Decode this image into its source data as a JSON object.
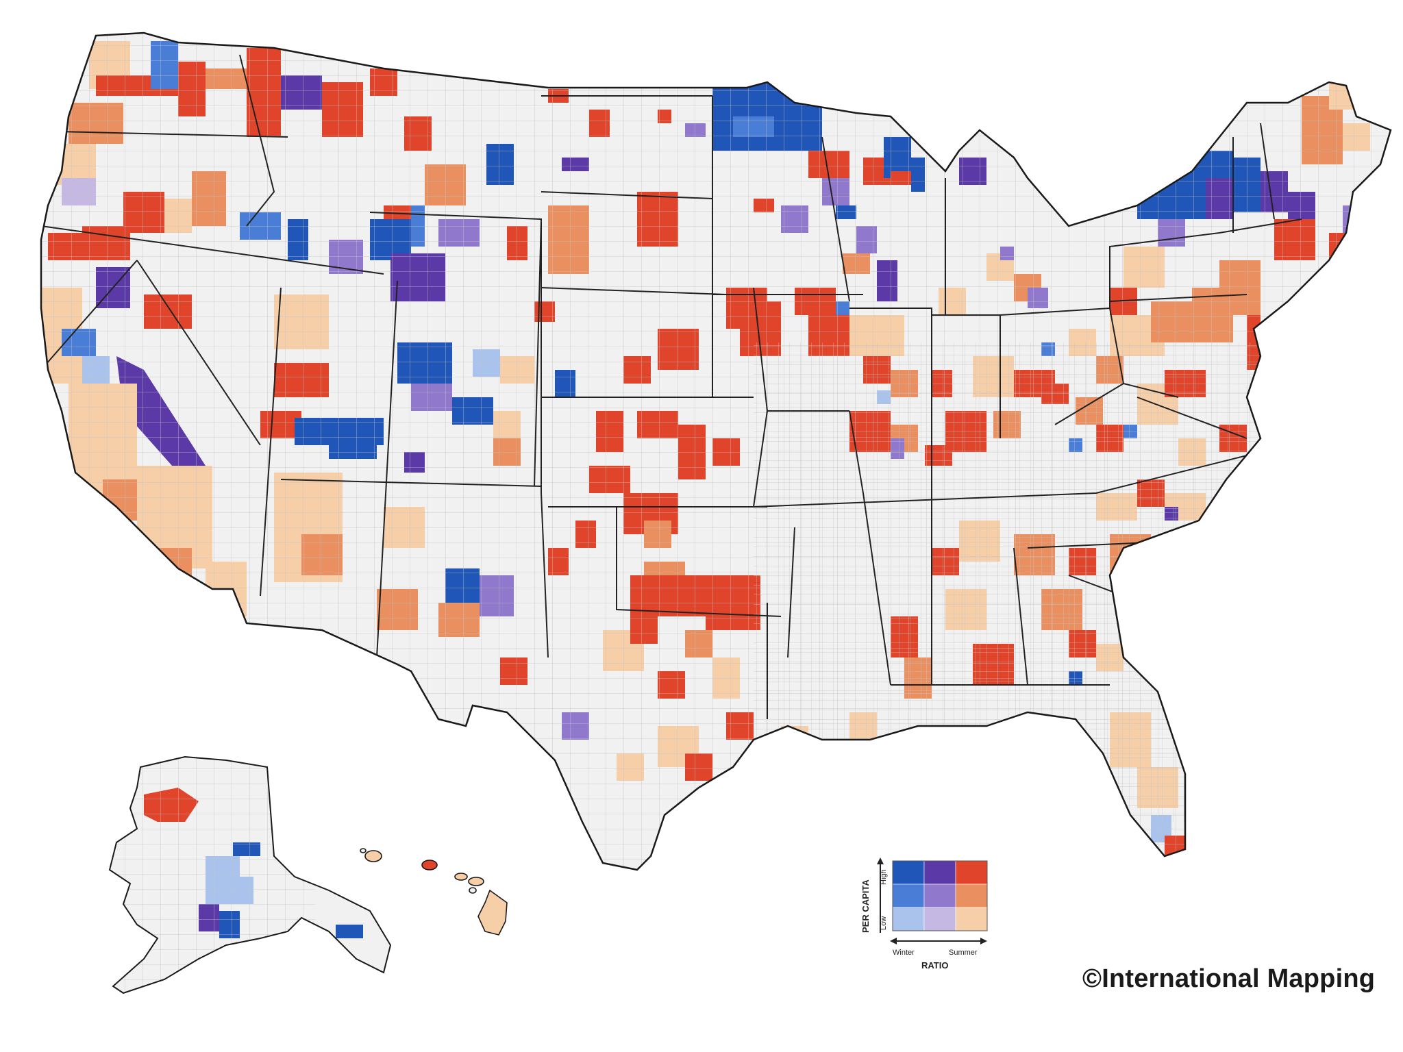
{
  "credit": "©International Mapping",
  "legend": {
    "y_title": "PER CAPITA",
    "y_high": "High",
    "y_low": "Low",
    "x_title": "RATIO",
    "x_left": "Winter",
    "x_right": "Summer",
    "grid_colors": [
      [
        "#1f56b8",
        "#5b3aa8",
        "#e0442a"
      ],
      [
        "#4a7ed6",
        "#9079cc",
        "#ea8f5f"
      ],
      [
        "#a9c3ec",
        "#c5b8e2",
        "#f6cfa8"
      ]
    ]
  },
  "colors": {
    "background": "#ffffff",
    "land": "#f1f1f2",
    "state_border": "#222222",
    "county_border": "#b8b8b8"
  }
}
